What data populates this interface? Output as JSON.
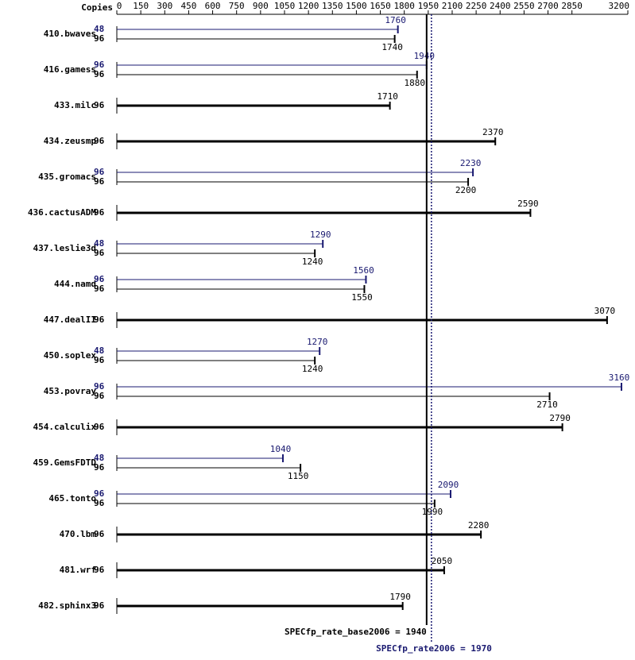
{
  "chart_data": {
    "type": "spec-bar",
    "copies_header": "Copies",
    "xlim": [
      0,
      3200
    ],
    "xticks": [
      0,
      150,
      300,
      450,
      600,
      750,
      900,
      1050,
      1200,
      1350,
      1500,
      1650,
      1800,
      1950,
      2100,
      2250,
      2400,
      2550,
      2700,
      2850,
      3200
    ],
    "categories": [
      "410.bwaves",
      "416.gamess",
      "433.milc",
      "434.zeusmp",
      "435.gromacs",
      "436.cactusADM",
      "437.leslie3d",
      "444.namd",
      "447.dealII",
      "450.soplex",
      "453.povray",
      "454.calculix",
      "459.GemsFDTD",
      "465.tonto",
      "470.lbm",
      "481.wrf",
      "482.sphinx3"
    ],
    "series": [
      {
        "color": "#191970",
        "copies": [
          48,
          96,
          null,
          null,
          96,
          null,
          48,
          96,
          null,
          48,
          96,
          null,
          48,
          96,
          null,
          null,
          null
        ],
        "values": [
          1760,
          1940,
          null,
          null,
          2230,
          null,
          1290,
          1560,
          null,
          1270,
          3160,
          null,
          1040,
          2090,
          null,
          null,
          null
        ]
      },
      {
        "color": "#000000",
        "copies": [
          96,
          96,
          96,
          96,
          96,
          96,
          96,
          96,
          96,
          96,
          96,
          96,
          96,
          96,
          96,
          96,
          96
        ],
        "values": [
          1740,
          1880,
          1710,
          2370,
          2200,
          2590,
          1240,
          1550,
          3070,
          1240,
          2710,
          2790,
          1150,
          1990,
          2280,
          2050,
          1790
        ]
      }
    ],
    "reference_lines": [
      {
        "label": "SPECfp_rate_base2006 = 1940",
        "value": 1940,
        "color": "#000000",
        "style": "solid"
      },
      {
        "label": "SPECfp_rate2006 = 1970",
        "value": 1970,
        "color": "#191970",
        "style": "dotted"
      }
    ]
  }
}
